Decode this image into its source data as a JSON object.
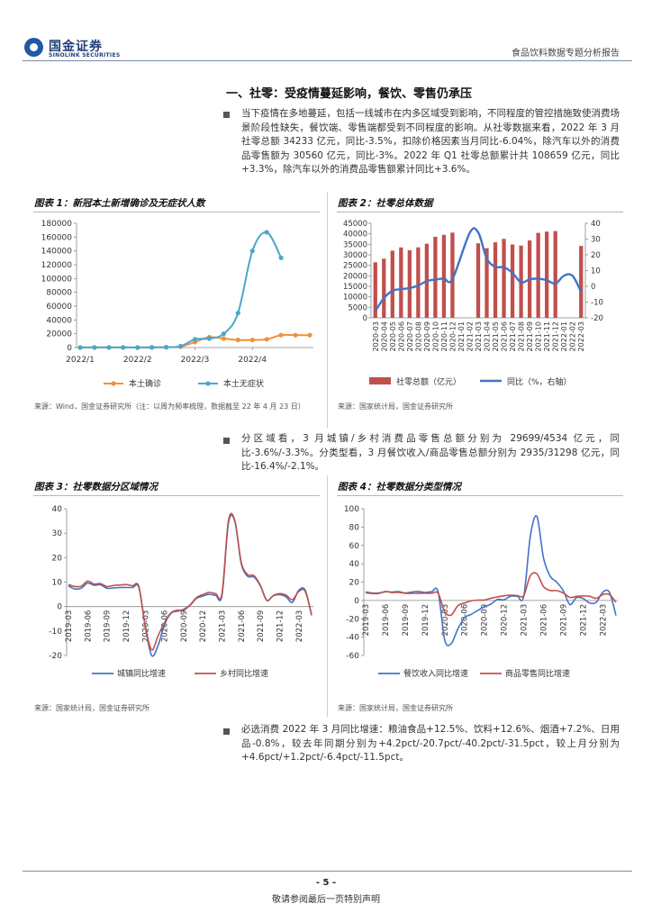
{
  "header": {
    "logo_cn": "国金证券",
    "logo_en": "SINOLINK SECURITIES",
    "report_title": "食品饮料数据专题分析报告"
  },
  "section_title": "一、社零：受疫情蔓延影响，餐饮、零售仍承压",
  "paragraphs": [
    "当下疫情在多地蔓延，包括一线城市在内多区域受到影响，不同程度的管控措施致使消费场景阶段性缺失，餐饮端、零售端都受到不同程度的影响。从社零数据来看，2022 年 3 月社零总额 34233 亿元，同比-3.5%，扣除价格因素当月同比-6.04%，除汽车以外的消费品零售额为 30560 亿元，同比-3%。2022 年 Q1 社零总额累计共 108659 亿元，同比+3.3%，除汽车以外的消费品零售额累计同比+3.6%。",
    "分区域看，3 月城镇/乡村消费品零售总额分别为 29699/4534 亿元，同比-3.6%/-3.3%。分类型看，3 月餐饮收入/商品零售总额分别为 2935/31298 亿元，同比-16.4%/-2.1%。",
    "必选消费 2022 年 3 月同比增速：粮油食品+12.5%、饮料+12.6%、烟酒+7.2%、日用品-0.8%，较去年同期分别为+4.2pct/-20.7pct/-40.2pct/-31.5pct，较上月分别为+4.6pct/+1.2pct/-6.4pct/-11.5pct。"
  ],
  "figures": {
    "fig1": {
      "title": "图表 1：新冠本土新增确诊及无症状人数",
      "source": "来源：Wind，国金证券研究所（注：以周为频率梳理，数据截至 22 年 4 月 23 日）"
    },
    "fig2": {
      "title": "图表 2：社零总体数据",
      "source": "来源：国家统计局，国金证券研究所"
    },
    "fig3": {
      "title": "图表 3：社零数据分区域情况",
      "source": "来源：国家统计局，国金证券研究所"
    },
    "fig4": {
      "title": "图表 4：社零数据分类型情况",
      "source": "来源：国家统计局，国金证券研究所"
    }
  },
  "footer": {
    "page_number": "- 5 -",
    "disclaimer": "敬请参阅最后一页特别声明"
  },
  "chart_data": [
    {
      "id": "fig1",
      "type": "line",
      "x": [
        0,
        1,
        2,
        3,
        4,
        5,
        6,
        7,
        8,
        9,
        10,
        11,
        12,
        13,
        14,
        15,
        16
      ],
      "xticklabels": [
        "2022/1",
        "2022/2",
        "2022/3",
        "2022/4"
      ],
      "xtick_positions": [
        0,
        4,
        8,
        12
      ],
      "series": [
        {
          "name": "本土确诊",
          "color": "#f0913a",
          "values": [
            100,
            200,
            200,
            200,
            150,
            300,
            500,
            1200,
            8000,
            15000,
            13000,
            11000,
            11000,
            12000,
            18000,
            18000,
            18000
          ]
        },
        {
          "name": "本土无症状",
          "color": "#49a8c9",
          "values": [
            50,
            100,
            100,
            100,
            100,
            200,
            500,
            2000,
            12000,
            13000,
            20000,
            50000,
            140000,
            167000,
            130000,
            null,
            null
          ]
        }
      ],
      "ylim": [
        0,
        180000
      ],
      "yticks": [
        0,
        20000,
        40000,
        60000,
        80000,
        100000,
        120000,
        140000,
        160000,
        180000
      ]
    },
    {
      "id": "fig2",
      "type": "bar+line",
      "categories": [
        "2020-03",
        "2020-04",
        "2020-05",
        "2020-06",
        "2020-07",
        "2020-08",
        "2020-09",
        "2020-10",
        "2020-11",
        "2020-12",
        "2021-01",
        "2021-02",
        "2021-03",
        "2021-04",
        "2021-05",
        "2021-06",
        "2021-07",
        "2021-08",
        "2021-09",
        "2021-10",
        "2021-11",
        "2021-12",
        "2022-01",
        "2022-02",
        "2022-03"
      ],
      "xticklabels": [
        "2020-03",
        "2020-04",
        "2020-05",
        "2020-06",
        "2020-07",
        "2020-08",
        "2020-09",
        "2020-10",
        "2020-11",
        "2020-12",
        "2021-01",
        "2021-02",
        "2021-03",
        "2021-04",
        "2021-05",
        "2021-06",
        "2021-07",
        "2021-08",
        "2021-09",
        "2021-10",
        "2021-11",
        "2021-12",
        "2022-01",
        "2022-02",
        "2022-03"
      ],
      "bar_series": {
        "name": "社零总额（亿元）",
        "color": "#c0504d",
        "values": [
          26450,
          28178,
          31973,
          33526,
          32203,
          33571,
          35295,
          38576,
          39514,
          40566,
          null,
          null,
          35484,
          33153,
          35945,
          37586,
          34925,
          34395,
          36833,
          40454,
          41043,
          41269,
          null,
          null,
          34233
        ]
      },
      "line_series": {
        "name": "同比（%，右轴）",
        "color": "#4472c4",
        "values": [
          -15.8,
          -7.5,
          -2.8,
          -1.8,
          -1.1,
          0.5,
          3.3,
          4.3,
          5,
          4.6,
          null,
          33.8,
          34.2,
          17.7,
          12.4,
          12.1,
          8.5,
          2.5,
          4.4,
          4.9,
          3.9,
          1.7,
          6.7,
          6.7,
          -3.5
        ]
      },
      "ylim_left": [
        0,
        45000
      ],
      "yticks_left": [
        0,
        5000,
        10000,
        15000,
        20000,
        25000,
        30000,
        35000,
        40000,
        45000
      ],
      "ylim_right": [
        -20,
        40
      ],
      "yticks_right": [
        -20,
        -10,
        0,
        10,
        20,
        30,
        40
      ]
    },
    {
      "id": "fig3",
      "type": "line",
      "xticklabels": [
        "2019-03",
        "2019-06",
        "2019-09",
        "2019-12",
        "2020-03",
        "2020-06",
        "2020-09",
        "2020-12",
        "2021-03",
        "2021-06",
        "2021-09",
        "2021-12",
        "2022-03"
      ],
      "series": [
        {
          "name": "城镇同比增速",
          "color": "#4472c4",
          "values": [
            8.5,
            7.2,
            7.5,
            9.6,
            8.7,
            8.9,
            7.5,
            7.6,
            7.8,
            7.8,
            7.8,
            7.8,
            -8,
            -20,
            -16,
            -7.5,
            -2.8,
            -1.9,
            -1.1,
            0.5,
            3.3,
            4.3,
            5,
            4.6,
            4.6,
            34,
            34.9,
            17.7,
            12.4,
            12.1,
            8.4,
            2.5,
            4.4,
            4.9,
            4,
            1.7,
            6.7,
            6.7,
            -3.6
          ]
        },
        {
          "name": "乡村同比增速",
          "color": "#c0504d",
          "values": [
            9,
            8.2,
            8.3,
            10.4,
            9.2,
            9.4,
            8.2,
            8.6,
            8.8,
            9,
            8.5,
            8.2,
            -8,
            -17.7,
            -12,
            -6.6,
            -2.6,
            -1.5,
            -1.5,
            0.6,
            3.6,
            4.9,
            5.8,
            5.3,
            5.3,
            35,
            35.2,
            18.2,
            13.1,
            12.6,
            8.6,
            2.6,
            4.5,
            5.3,
            4.7,
            2.8,
            6.2,
            6.2,
            -3.3
          ]
        }
      ],
      "ylim": [
        -20,
        40
      ],
      "yticks": [
        -20,
        -10,
        0,
        10,
        20,
        30,
        40
      ]
    },
    {
      "id": "fig4",
      "type": "line",
      "xticklabels": [
        "2019-03",
        "2019-06",
        "2019-09",
        "2019-12",
        "2020-03",
        "2020-06",
        "2020-09",
        "2020-12",
        "2021-03",
        "2021-06",
        "2021-09",
        "2021-12",
        "2022-03"
      ],
      "series": [
        {
          "name": "餐饮收入同比增速",
          "color": "#4472c4",
          "values": [
            9.3,
            8,
            8.2,
            9.4,
            9.2,
            9.6,
            8.1,
            9.1,
            9.8,
            8.7,
            9.5,
            9.4,
            -43,
            -47,
            -31,
            -18.9,
            -15.2,
            -11,
            -7,
            -4,
            1.1,
            0.8,
            4.6,
            4.6,
            4.6,
            70,
            91.6,
            46.4,
            26.6,
            20,
            10.7,
            -4.5,
            3.1,
            2.1,
            -2.7,
            -2,
            8.9,
            8.9,
            -16.4
          ]
        },
        {
          "name": "商品零售同比增速",
          "color": "#c0504d",
          "values": [
            8.5,
            7.5,
            7.6,
            9.8,
            8.6,
            8.9,
            7.7,
            7.7,
            7.8,
            7.9,
            7.7,
            7.8,
            -12.4,
            -15.8,
            -5.7,
            -2.8,
            -0.5,
            0.4,
            0.5,
            2.3,
            3.9,
            5,
            5.8,
            5.4,
            5.4,
            27,
            29,
            15.1,
            10.9,
            10.7,
            8.2,
            3.3,
            4.5,
            4.9,
            4.6,
            2.3,
            6.5,
            6.5,
            -2.1
          ]
        }
      ],
      "ylim": [
        -60,
        100
      ],
      "yticks": [
        -60,
        -40,
        -20,
        0,
        20,
        40,
        60,
        80,
        100
      ]
    }
  ]
}
